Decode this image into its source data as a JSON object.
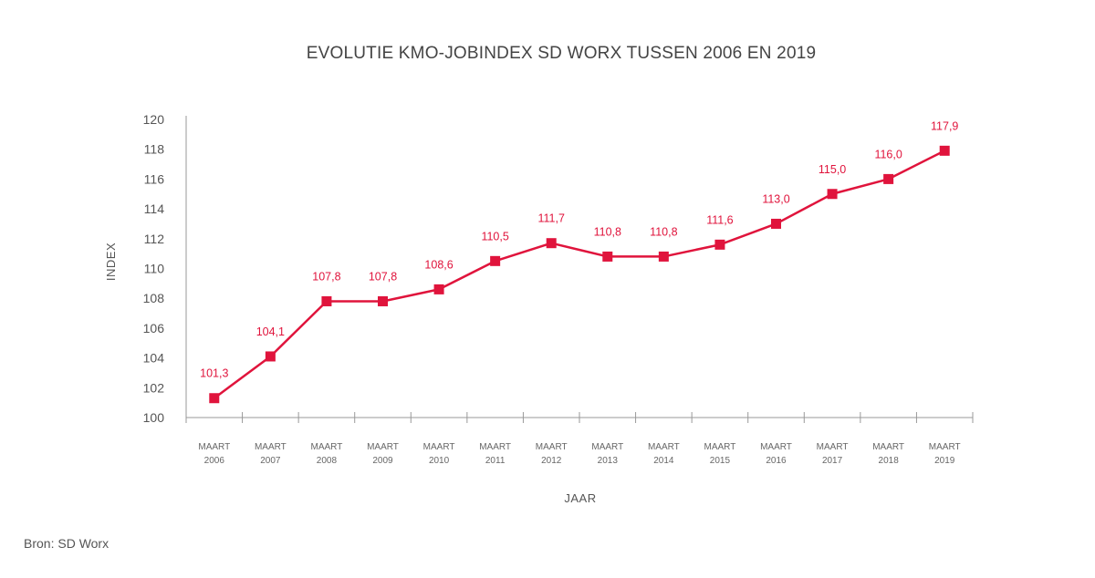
{
  "chart_data": {
    "type": "line",
    "title": "EVOLUTIE KMO-JOBINDEX SD WORX TUSSEN 2006 EN 2019",
    "xlabel": "JAAR",
    "ylabel": "INDEX",
    "ylim": [
      100,
      120
    ],
    "yticks": [
      "100",
      "102",
      "104",
      "106",
      "108",
      "110",
      "112",
      "114",
      "116",
      "118",
      "120"
    ],
    "categories": [
      [
        "MAART",
        "2006"
      ],
      [
        "MAART",
        "2007"
      ],
      [
        "MAART",
        "2008"
      ],
      [
        "MAART",
        "2009"
      ],
      [
        "MAART",
        "2010"
      ],
      [
        "MAART",
        "2011"
      ],
      [
        "MAART",
        "2012"
      ],
      [
        "MAART",
        "2013"
      ],
      [
        "MAART",
        "2014"
      ],
      [
        "MAART",
        "2015"
      ],
      [
        "MAART",
        "2016"
      ],
      [
        "MAART",
        "2017"
      ],
      [
        "MAART",
        "2018"
      ],
      [
        "MAART",
        "2019"
      ]
    ],
    "series": [
      {
        "name": "KMO-jobindex",
        "values": [
          101.3,
          104.1,
          107.8,
          107.8,
          108.6,
          110.5,
          111.7,
          110.8,
          110.8,
          111.6,
          113.0,
          115.0,
          116.0,
          117.9
        ],
        "labels": [
          "101,3",
          "104,1",
          "107,8",
          "107,8",
          "108,6",
          "110,5",
          "111,7",
          "110,8",
          "110,8",
          "111,6",
          "113,0",
          "115,0",
          "116,0",
          "117,9"
        ]
      }
    ],
    "grid": false,
    "color": "#e0143c"
  },
  "source": "Bron: SD Worx"
}
